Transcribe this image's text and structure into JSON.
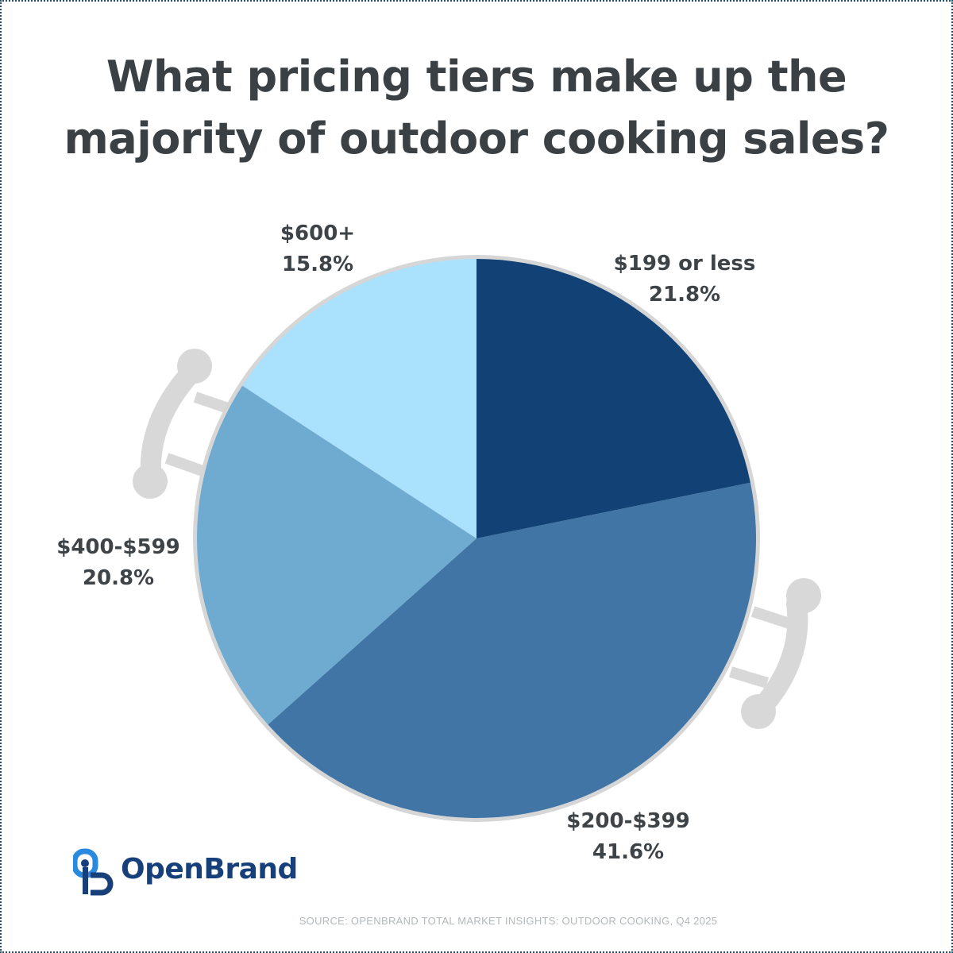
{
  "title": "What pricing tiers make up the majority of outdoor cooking sales?",
  "brand": {
    "name": "OpenBrand",
    "icon": "openbrand-logo-icon"
  },
  "source": "SOURCE: OPENBRAND TOTAL MARKET INSIGHTS: OUTDOOR COOKING, Q4 2025",
  "chart_data": {
    "type": "pie",
    "title": "What pricing tiers make up the majority of outdoor cooking sales?",
    "start_angle": "12 o'clock",
    "direction": "clockwise",
    "slices": [
      {
        "label": "$199 or less",
        "value": 21.8,
        "value_label": "21.8%",
        "color": "#124275"
      },
      {
        "label": "$200-$399",
        "value": 41.6,
        "value_label": "41.6%",
        "color": "#4075a5"
      },
      {
        "label": "$400-$599",
        "value": 20.8,
        "value_label": "20.8%",
        "color": "#6faad1"
      },
      {
        "label": "$600+",
        "value": 15.8,
        "value_label": "15.8%",
        "color": "#aae1fc"
      }
    ],
    "decoration": "grill-handles-icon"
  }
}
